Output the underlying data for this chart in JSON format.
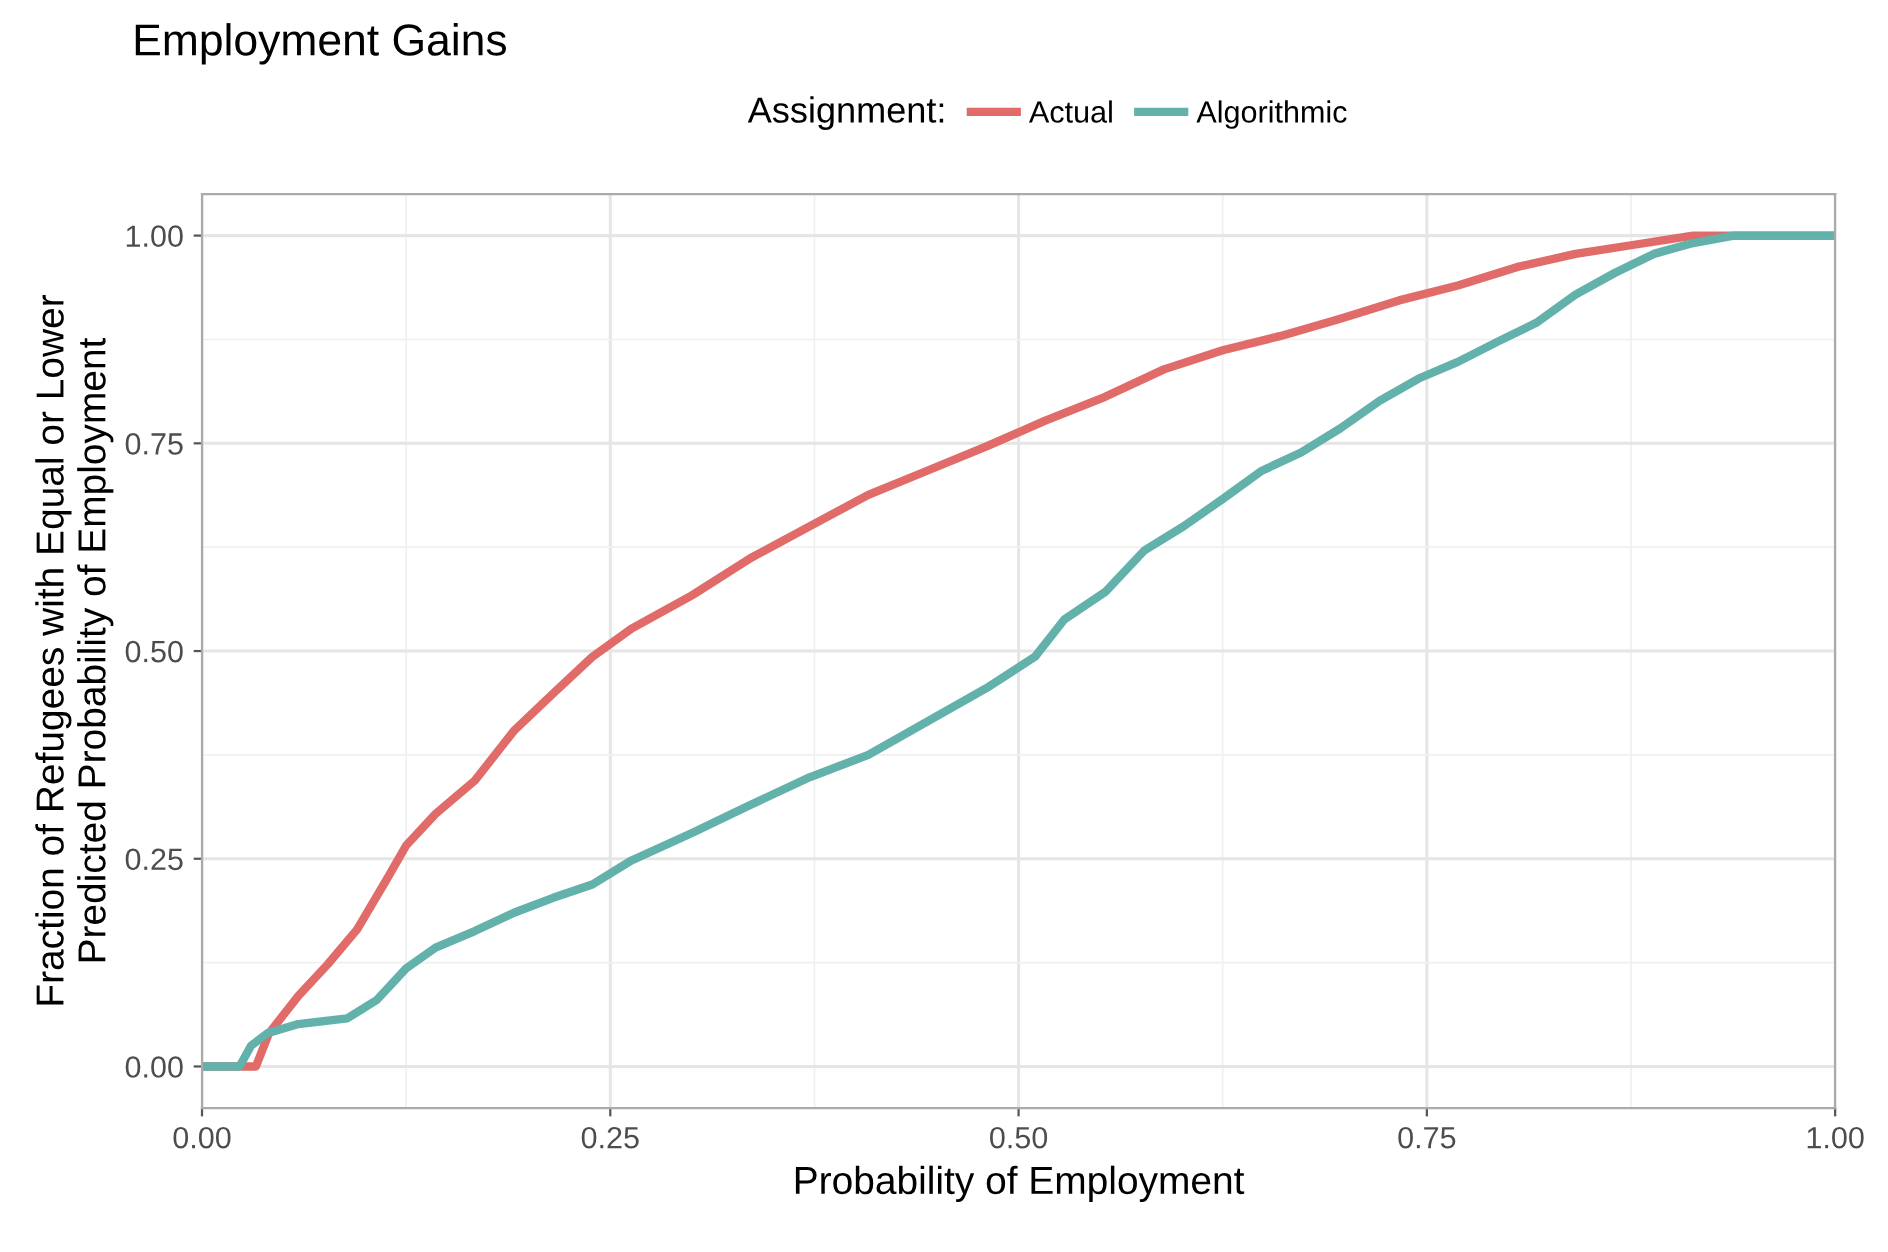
{
  "chart_data": {
    "type": "line",
    "title": "Employment Gains",
    "xlabel": "Probability of Employment",
    "ylabel": "Fraction of Refugees with Equal or Lower\nPredicted Probability of Employment",
    "legend_title": "Assignment:",
    "legend": "top",
    "xlim": [
      0,
      1
    ],
    "ylim": [
      -0.05,
      1.05
    ],
    "xticks": [
      {
        "value": 0,
        "label": "0.00"
      },
      {
        "value": 0.25,
        "label": "0.25"
      },
      {
        "value": 0.5,
        "label": "0.50"
      },
      {
        "value": 0.75,
        "label": "0.75"
      },
      {
        "value": 1,
        "label": "1.00"
      }
    ],
    "yticks": [
      {
        "value": 0,
        "label": "0.00"
      },
      {
        "value": 0.25,
        "label": "0.25"
      },
      {
        "value": 0.5,
        "label": "0.50"
      },
      {
        "value": 0.75,
        "label": "0.75"
      },
      {
        "value": 1,
        "label": "1.00"
      }
    ],
    "grid": true,
    "series": [
      {
        "name": "Actual",
        "color": "#e06b69",
        "x": [
          0,
          0.023,
          0.033,
          0.041,
          0.059,
          0.077,
          0.095,
          0.113,
          0.125,
          0.143,
          0.167,
          0.191,
          0.215,
          0.239,
          0.263,
          0.3,
          0.336,
          0.372,
          0.408,
          0.444,
          0.48,
          0.516,
          0.553,
          0.589,
          0.625,
          0.66,
          0.697,
          0.733,
          0.769,
          0.805,
          0.841,
          0.877,
          0.913,
          1
        ],
        "values": [
          0,
          0,
          0,
          0.04,
          0.085,
          0.123,
          0.165,
          0.225,
          0.266,
          0.304,
          0.344,
          0.404,
          0.449,
          0.493,
          0.527,
          0.567,
          0.612,
          0.65,
          0.688,
          0.717,
          0.746,
          0.777,
          0.806,
          0.839,
          0.862,
          0.879,
          0.9,
          0.922,
          0.94,
          0.962,
          0.978,
          0.989,
          1,
          1
        ]
      },
      {
        "name": "Algorithmic",
        "color": "#62b1ab",
        "x": [
          0,
          0.023,
          0.03,
          0.04,
          0.059,
          0.089,
          0.107,
          0.125,
          0.143,
          0.167,
          0.191,
          0.215,
          0.239,
          0.263,
          0.3,
          0.336,
          0.372,
          0.408,
          0.444,
          0.48,
          0.51,
          0.528,
          0.553,
          0.577,
          0.601,
          0.625,
          0.649,
          0.673,
          0.697,
          0.721,
          0.745,
          0.769,
          0.794,
          0.817,
          0.841,
          0.865,
          0.889,
          0.913,
          0.938,
          1
        ],
        "values": [
          0,
          0,
          0.025,
          0.04,
          0.051,
          0.058,
          0.08,
          0.118,
          0.143,
          0.163,
          0.185,
          0.203,
          0.219,
          0.248,
          0.281,
          0.315,
          0.348,
          0.375,
          0.415,
          0.455,
          0.493,
          0.538,
          0.571,
          0.621,
          0.65,
          0.683,
          0.717,
          0.739,
          0.768,
          0.801,
          0.828,
          0.848,
          0.873,
          0.895,
          0.929,
          0.955,
          0.978,
          0.991,
          1,
          1
        ]
      }
    ]
  }
}
